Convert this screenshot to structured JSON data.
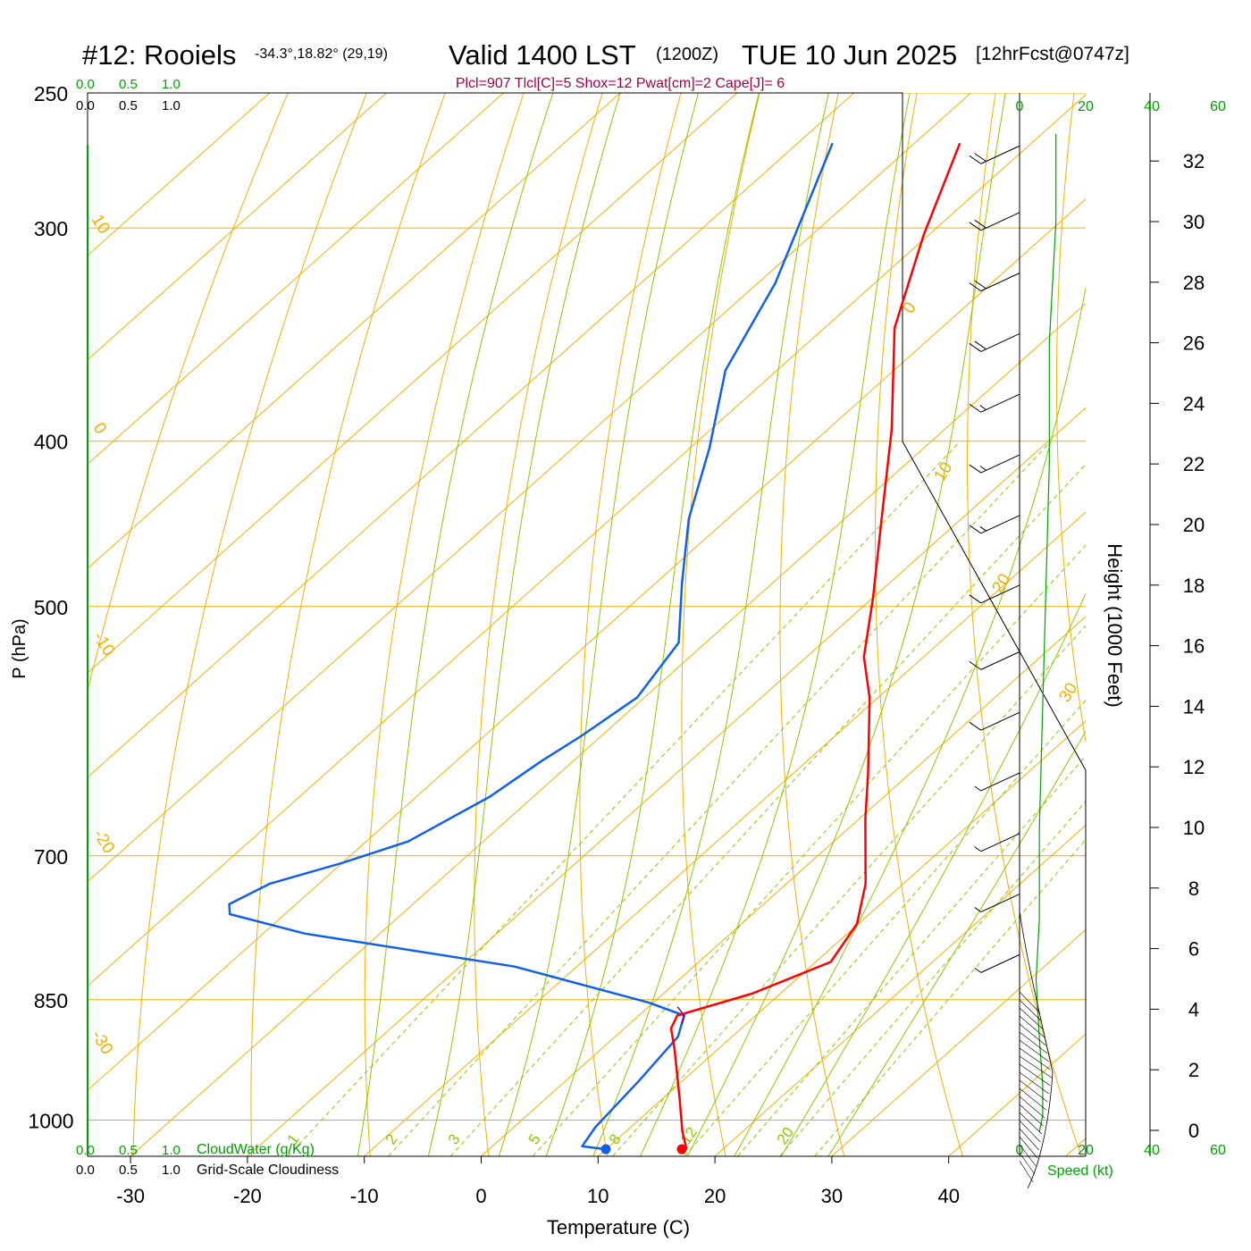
{
  "header": {
    "station": "#12: Rooiels",
    "coords": "-34.3°,18.82° (29,19)",
    "valid": "Valid 1400 LST",
    "utc": "(1200Z)",
    "date": "TUE 10 Jun 2025",
    "forecast": "[12hrFcst@0747z]",
    "indices": "Plcl=907 Tlcl[C]=5 Shox=12 Pwat[cm]=2 Cape[J]= 6"
  },
  "labels": {
    "x_axis": "Temperature (C)",
    "y_axis": "P (hPa)",
    "height_axis": "Height (1000 Feet)",
    "cloudwater": "CloudWater (g/Kg)",
    "cloudiness": "Grid-Scale Cloudiness",
    "speed": "Speed (kt)",
    "cw_ticks": [
      "0.0",
      "0.5",
      "1.0"
    ],
    "speed_ticks": [
      "0",
      "20",
      "40",
      "60"
    ]
  },
  "colors": {
    "isobar": "#f0b000",
    "isotherm": "#f0b000",
    "dry_adiabat": "#f0b000",
    "moist_adiabat": "#8cc800",
    "mixing_ratio": "#8cc800",
    "temperature": "#ff0000",
    "dewpoint": "#1060e8",
    "indices_text": "#a0004a",
    "green_axis": "#00a000"
  },
  "chart_data": {
    "type": "line",
    "subtype": "skew-T log-P sounding",
    "x_ticks": [
      -30,
      -20,
      -10,
      0,
      10,
      20,
      30,
      40
    ],
    "pressure_levels": [
      250,
      300,
      400,
      500,
      700,
      850,
      1000
    ],
    "height_ticks_kft": [
      0,
      2,
      4,
      6,
      8,
      10,
      12,
      14,
      16,
      18,
      20,
      22,
      24,
      26,
      28,
      30,
      32
    ],
    "isotherm_labels": [
      "10",
      "0",
      "-10",
      "-20",
      "-30",
      "0",
      "10",
      "20",
      "30"
    ],
    "mixing_ratio_labels": [
      "1",
      "2",
      "3",
      "5",
      "8",
      "12",
      "20"
    ],
    "series": [
      {
        "name": "Temperature",
        "pressure_hpa": [
          1030,
          1005,
          960,
          900,
          875,
          860,
          835,
          800,
          760,
          720,
          660,
          620,
          560,
          530,
          490,
          440,
          390,
          340,
          300,
          265
        ],
        "temperature_c": [
          16.2,
          14.1,
          10.6,
          5.6,
          3.3,
          2.6,
          6.9,
          10.6,
          9.2,
          6.1,
          -0.1,
          -4.3,
          -11.4,
          -15.8,
          -20.6,
          -27.5,
          -35.2,
          -44.7,
          -51.1,
          -56.8
        ]
      },
      {
        "name": "Dewpoint",
        "pressure_hpa": [
          1030,
          1026,
          1000,
          940,
          885,
          860,
          845,
          805,
          770,
          750,
          740,
          720,
          700,
          680,
          640,
          610,
          590,
          560,
          520,
          480,
          440,
          400,
          360,
          320,
          265
        ],
        "dewpoint_c": [
          9.3,
          7.0,
          6.3,
          5.6,
          4.7,
          3.2,
          -1.1,
          -16.0,
          -37.1,
          -45.4,
          -46.4,
          -44.9,
          -40.7,
          -37.1,
          -34.4,
          -33.4,
          -32.4,
          -31.3,
          -33.0,
          -38.4,
          -44.0,
          -49.0,
          -55.1,
          -59.2,
          -67.7
        ]
      },
      {
        "name": "Parcel",
        "pressure_hpa": [
          870,
          860,
          850
        ],
        "temperature_c": [
          3.8,
          3.2,
          1.8
        ]
      }
    ],
    "surface_points": {
      "temperature_c": 15.8,
      "dewpoint_c": 9.3
    },
    "wind_barbs": [
      {
        "height_kft": 32.5,
        "speed_kt": 20
      },
      {
        "height_kft": 30.3,
        "speed_kt": 20
      },
      {
        "height_kft": 28.3,
        "speed_kt": 20
      },
      {
        "height_kft": 26.3,
        "speed_kt": 20
      },
      {
        "height_kft": 24.3,
        "speed_kt": 15
      },
      {
        "height_kft": 22.3,
        "speed_kt": 15
      },
      {
        "height_kft": 20.3,
        "speed_kt": 15
      },
      {
        "height_kft": 18.0,
        "speed_kt": 10
      },
      {
        "height_kft": 15.8,
        "speed_kt": 10
      },
      {
        "height_kft": 13.8,
        "speed_kt": 10
      },
      {
        "height_kft": 11.8,
        "speed_kt": 5
      },
      {
        "height_kft": 9.8,
        "speed_kt": 5
      },
      {
        "height_kft": 7.8,
        "speed_kt": 5
      },
      {
        "height_kft": 5.8,
        "speed_kt": 5
      }
    ],
    "wind_speed_profile": {
      "height_kft": [
        -0.05,
        0.5,
        1.5,
        3,
        5,
        7,
        10,
        14,
        18,
        22,
        26,
        30,
        32.9
      ],
      "speed_kt": [
        6,
        7,
        7,
        6,
        5,
        6,
        6,
        7,
        8,
        9,
        9,
        11,
        11
      ]
    }
  }
}
